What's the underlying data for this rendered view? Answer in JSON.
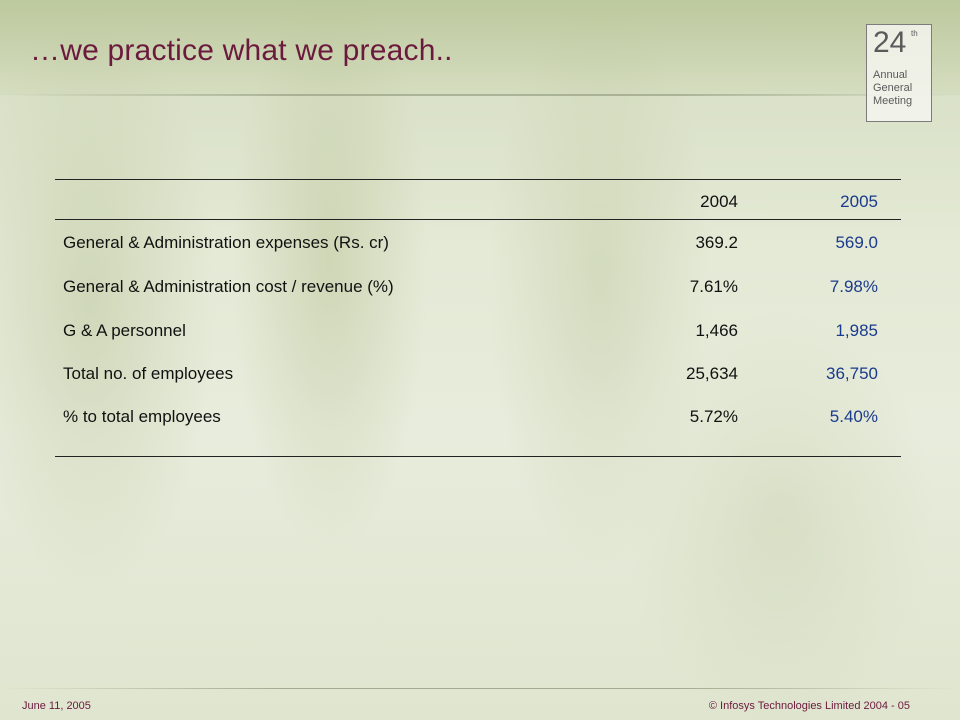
{
  "slide": {
    "title": "…we practice what we preach.."
  },
  "logo": {
    "number": "24",
    "superscript": "th",
    "line1": "Annual",
    "line2": "General",
    "line3": "Meeting"
  },
  "table": {
    "columns": [
      "",
      "2004",
      "2005"
    ],
    "rows": [
      {
        "label": "General & Administration expenses (Rs. cr)",
        "y2004": "369.2",
        "y2005": "569.0"
      },
      {
        "label": "General & Administration cost / revenue (%)",
        "y2004": "7.61%",
        "y2005": "7.98%"
      },
      {
        "label": "G & A personnel",
        "y2004": "1,466",
        "y2005": "1,985"
      },
      {
        "label": "Total no. of employees",
        "y2004": "25,634",
        "y2005": "36,750"
      },
      {
        "label": "% to total employees",
        "y2004": "5.72%",
        "y2005": "5.40%"
      }
    ]
  },
  "footer": {
    "date": "June 11, 2005",
    "copyright": "© Infosys Technologies Limited 2004 - 05"
  },
  "colors": {
    "title": "#6b1a3d",
    "value_2005": "#1a3a8c",
    "text": "#111111"
  }
}
